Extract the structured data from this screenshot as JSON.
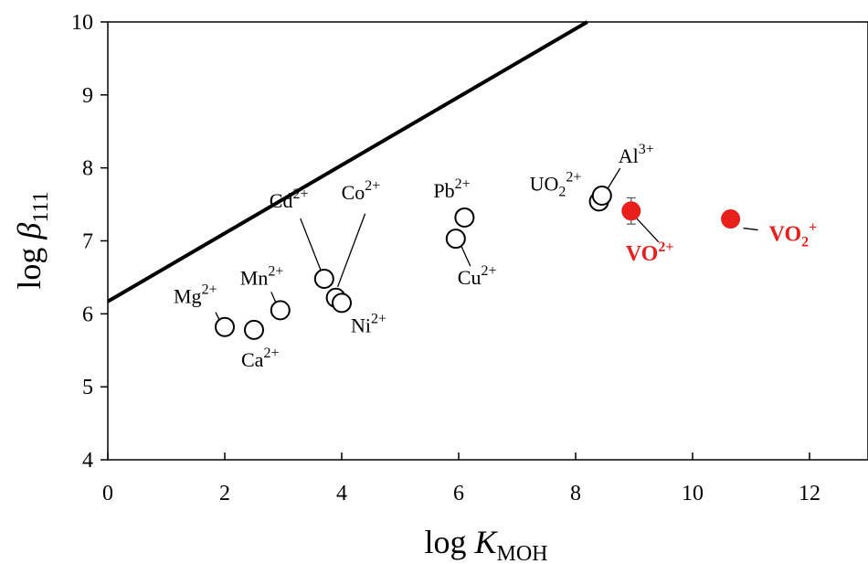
{
  "chart_data": {
    "type": "scatter",
    "xlabel": {
      "main": "log ",
      "var": "K",
      "sub": "MOH"
    },
    "ylabel": {
      "main": "log ",
      "var": "β",
      "sub": "111"
    },
    "xlim": [
      0,
      13
    ],
    "ylim": [
      4,
      10
    ],
    "xticks": [
      0,
      2,
      4,
      6,
      8,
      10,
      12
    ],
    "yticks": [
      4,
      5,
      6,
      7,
      8,
      9,
      10
    ],
    "grid": false,
    "legend": "none",
    "line": {
      "x": [
        0,
        8.2
      ],
      "y": [
        6.17,
        10
      ]
    },
    "series": [
      {
        "style": "open-circle",
        "color": "#000000",
        "points": [
          {
            "label": "Mg",
            "charge": "2+",
            "x": 2.0,
            "y": 5.82
          },
          {
            "label": "Ca",
            "charge": "2+",
            "x": 2.5,
            "y": 5.78
          },
          {
            "label": "Mn",
            "charge": "2+",
            "x": 2.95,
            "y": 6.05
          },
          {
            "label": "Cd",
            "charge": "2+",
            "x": 3.7,
            "y": 6.48
          },
          {
            "label": "Co",
            "charge": "2+",
            "x": 3.9,
            "y": 6.22
          },
          {
            "label": "Ni",
            "charge": "2+",
            "x": 4.0,
            "y": 6.15
          },
          {
            "label": "Cu",
            "charge": "2+",
            "x": 5.95,
            "y": 7.03
          },
          {
            "label": "Pb",
            "charge": "2+",
            "x": 6.1,
            "y": 7.32
          },
          {
            "label": "UO",
            "sub": "2",
            "charge": "2+",
            "x": 8.4,
            "y": 7.54
          },
          {
            "label": "Al",
            "charge": "3+",
            "x": 8.45,
            "y": 7.62
          }
        ]
      },
      {
        "style": "filled-circle",
        "color": "#e8201c",
        "points": [
          {
            "label": "VO",
            "charge": "2+",
            "x": 8.95,
            "y": 7.41,
            "error": 0.18
          },
          {
            "label": "VO",
            "sub": "2",
            "charge": "+",
            "x": 10.65,
            "y": 7.3
          }
        ]
      }
    ]
  }
}
